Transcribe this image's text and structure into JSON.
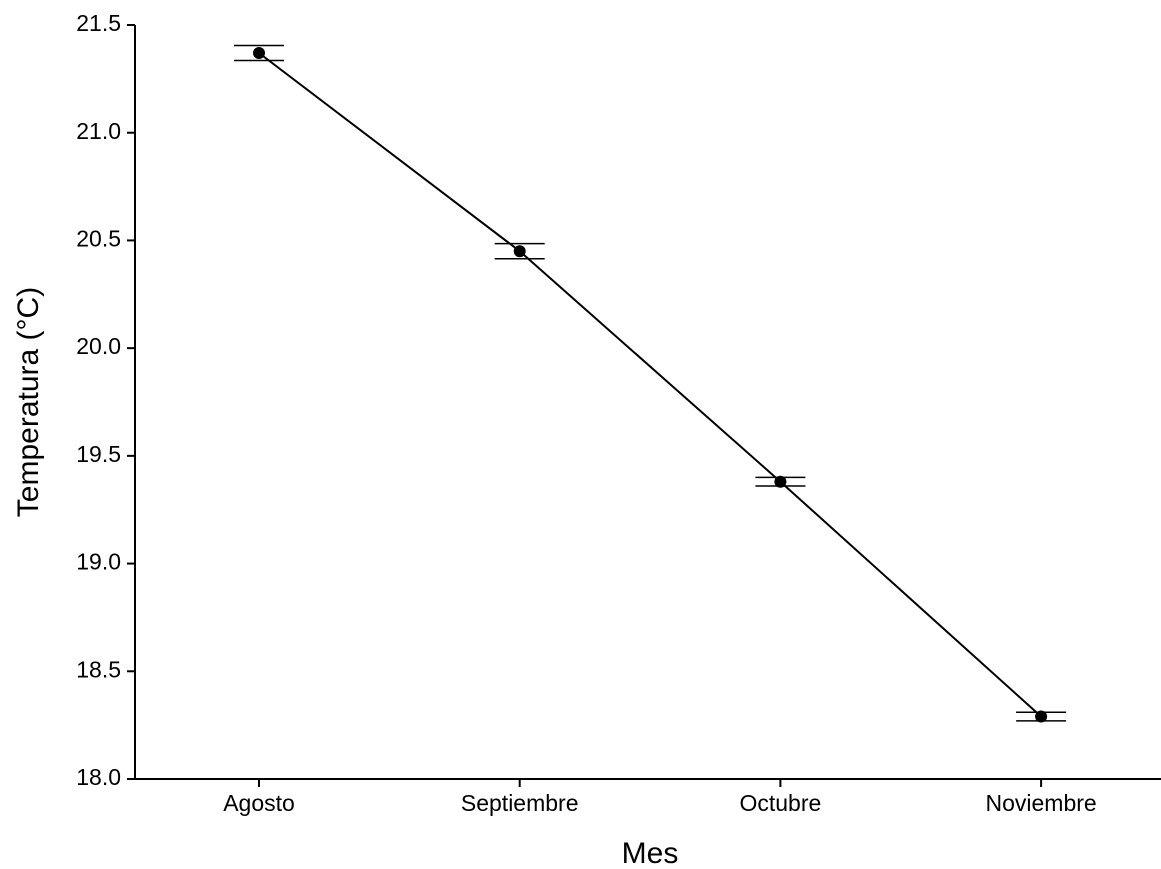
{
  "chart_data": {
    "type": "line",
    "xlabel": "Mes",
    "ylabel": "Temperatura (°C)",
    "categories": [
      "Agosto",
      "Septiembre",
      "Octubre",
      "Noviembre"
    ],
    "values": [
      21.37,
      20.45,
      19.38,
      18.29
    ],
    "errors": [
      0.035,
      0.035,
      0.02,
      0.02
    ],
    "color": "#000000",
    "ylim": [
      18,
      21.5
    ],
    "yticks": [
      {
        "value": 18,
        "label": "18.0"
      },
      18.5,
      {
        "value": 19,
        "label": "19.0"
      },
      19.5,
      {
        "value": 20,
        "label": "20.0"
      },
      20.5,
      {
        "value": 21,
        "label": "21.0"
      },
      21.5
    ],
    "grid": false
  }
}
